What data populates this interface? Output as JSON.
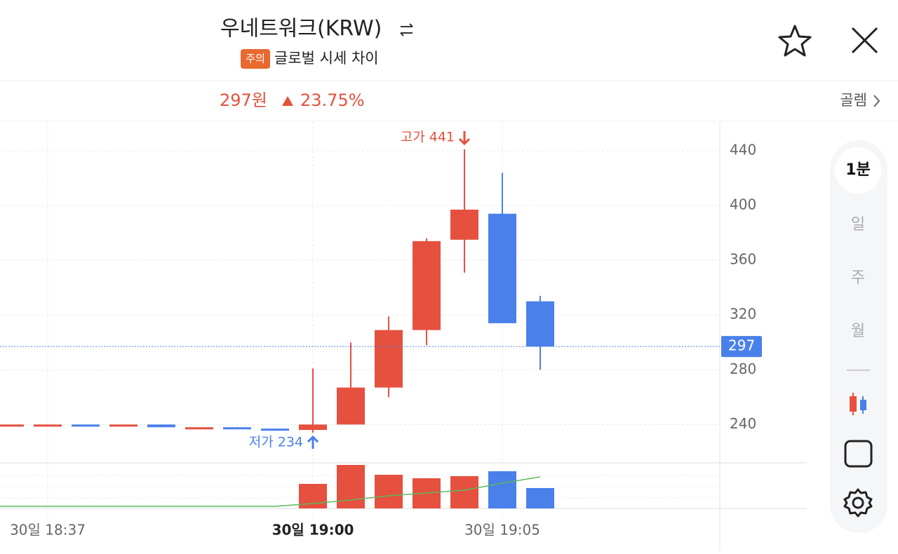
{
  "header": {
    "title": "우네트워크(KRW)",
    "badge": "주의",
    "subtitle": "글로벌 시세 차이",
    "price": "297원",
    "change": "23.75%",
    "exchange": "골렘"
  },
  "side_menu": {
    "intervals": [
      "1분",
      "일",
      "주",
      "월"
    ]
  },
  "chart_data": {
    "type": "candlestick",
    "categories": [
      null,
      "30일 18:37",
      null,
      null,
      null,
      null,
      null,
      null,
      "30일 19:00",
      null,
      null,
      null,
      null,
      "30일 19:05",
      null
    ],
    "open": [
      240,
      240,
      240,
      239,
      240,
      238,
      238,
      237,
      236,
      240,
      267,
      309,
      375,
      394,
      330
    ],
    "high": [
      240,
      240,
      240,
      240,
      240,
      238,
      238,
      237,
      281,
      300,
      319,
      376,
      441,
      424,
      334
    ],
    "low": [
      240,
      240,
      239,
      239,
      238,
      238,
      237,
      236,
      234,
      240,
      260,
      298,
      351,
      314,
      280
    ],
    "close": [
      240,
      240,
      239,
      240,
      238,
      238,
      237,
      236,
      240,
      267,
      309,
      374,
      397,
      314,
      297
    ],
    "up_color": "#e5503f",
    "down_color": "#4a80ea",
    "volume": [
      0,
      0,
      0,
      0,
      0,
      0,
      0,
      0,
      35,
      62,
      48,
      43,
      46,
      53,
      29
    ],
    "moving_average": {
      "color": "#5cb85c",
      "values": [
        3,
        3,
        3,
        3,
        3,
        3,
        3,
        3,
        7,
        12,
        18,
        22,
        26,
        36,
        45
      ]
    },
    "ylim": [
      212,
      461
    ],
    "yticks": [
      440,
      400,
      360,
      320,
      280,
      240
    ],
    "grid": true,
    "current_price": 297,
    "high_label": "고가 441",
    "low_label": "저가 234"
  }
}
